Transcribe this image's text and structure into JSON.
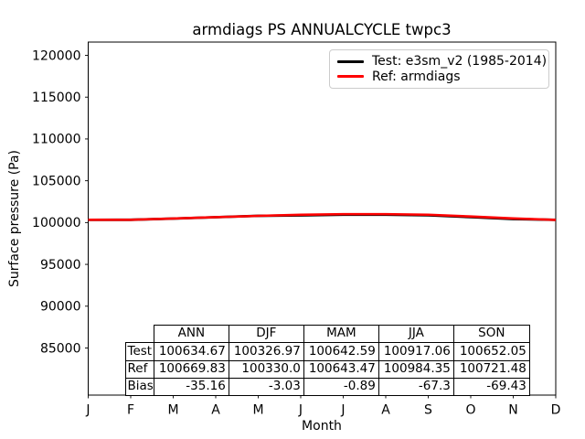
{
  "title": "armdiags PS ANNUALCYCLE twpc3",
  "axes": {
    "xlabel": "Month",
    "ylabel": "Surface pressure (Pa)",
    "y_ticks": [
      120000,
      115000,
      110000,
      105000,
      100000,
      95000,
      90000,
      85000
    ],
    "x_ticklabels": [
      "J",
      "F",
      "M",
      "A",
      "M",
      "J",
      "J",
      "A",
      "S",
      "O",
      "N",
      "D"
    ]
  },
  "legend": {
    "items": [
      {
        "label": "Test: e3sm_v2 (1985-2014)",
        "color": "#000000"
      },
      {
        "label": "Ref: armdiags",
        "color": "#ff0000"
      }
    ]
  },
  "chart_data": {
    "type": "line",
    "title": "armdiags PS ANNUALCYCLE twpc3",
    "xlabel": "Month",
    "ylabel": "Surface pressure (Pa)",
    "x": [
      "J",
      "F",
      "M",
      "A",
      "M",
      "J",
      "J",
      "A",
      "S",
      "O",
      "N",
      "D"
    ],
    "series": [
      {
        "name": "Test: e3sm_v2 (1985-2014)",
        "color": "#000000",
        "values": [
          100327,
          100332,
          100479,
          100644,
          100804,
          100863,
          100943,
          100943,
          100871,
          100656,
          100431,
          100322
        ]
      },
      {
        "name": "Ref: armdiags",
        "color": "#ff0000",
        "values": [
          100330,
          100335,
          100480,
          100645,
          100805,
          100930,
          101010,
          101010,
          100940,
          100725,
          100500,
          100325
        ]
      }
    ],
    "ylim": [
      79350,
      121590
    ],
    "yticks": [
      85000,
      90000,
      95000,
      100000,
      105000,
      110000,
      115000,
      120000
    ],
    "grid": false,
    "legend_position": "upper right",
    "seasonal_means": {
      "columns": [
        "ANN",
        "DJF",
        "MAM",
        "JJA",
        "SON"
      ],
      "Test": [
        100634.67,
        100326.97,
        100642.59,
        100917.06,
        100652.05
      ],
      "Ref": [
        100669.83,
        100330.0,
        100643.47,
        100984.35,
        100721.48
      ],
      "Bias": [
        -35.16,
        -3.03,
        -0.89,
        -67.3,
        -69.43
      ]
    }
  },
  "table": {
    "col_headers": [
      "ANN",
      "DJF",
      "MAM",
      "JJA",
      "SON"
    ],
    "rows": [
      {
        "label": "Test",
        "values": [
          "100634.67",
          "100326.97",
          "100642.59",
          "100917.06",
          "100652.05"
        ]
      },
      {
        "label": "Ref",
        "values": [
          "100669.83",
          "100330.0",
          "100643.47",
          "100984.35",
          "100721.48"
        ]
      },
      {
        "label": "Bias",
        "values": [
          "-35.16",
          "-3.03",
          "-0.89",
          "-67.3",
          "-69.43"
        ]
      }
    ]
  }
}
